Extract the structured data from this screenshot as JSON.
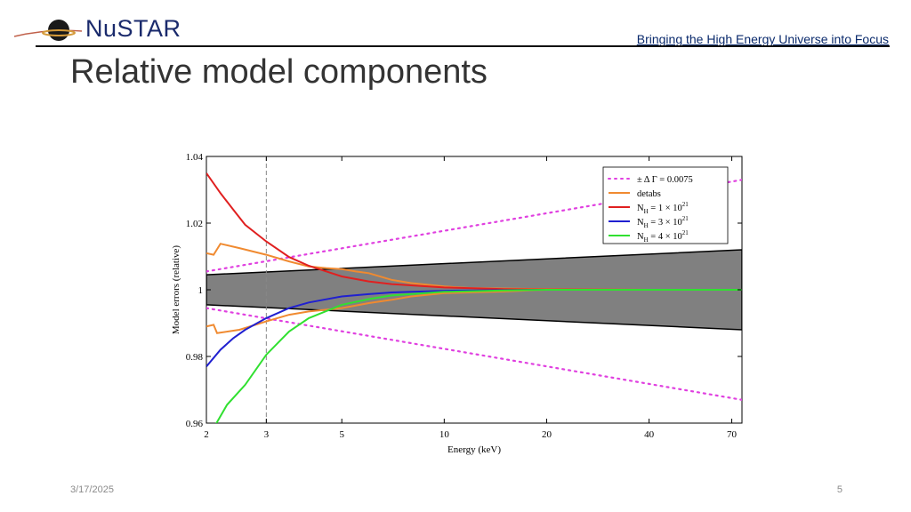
{
  "header": {
    "logo_text": "NuSTAR",
    "tagline": "Bringing the High Energy Universe into Focus"
  },
  "title": "Relative model components",
  "footer": {
    "date": "3/17/2025",
    "page": "5"
  },
  "chart_data": {
    "type": "line",
    "xscale": "log",
    "xlabel": "Energy (keV)",
    "ylabel": "Model errors (relative)",
    "xlim": [
      2,
      75
    ],
    "ylim": [
      0.96,
      1.04
    ],
    "xticks": [
      2,
      3,
      5,
      10,
      20,
      40,
      70
    ],
    "yticks": [
      0.96,
      0.98,
      1,
      1.02,
      1.04
    ],
    "ytick_labels": [
      "0.96",
      "0.98",
      "1",
      "1.02",
      "1.04"
    ],
    "vline_x": 3,
    "grid": false,
    "legend_position": "top-right",
    "band": {
      "upper": [
        [
          2,
          1.0045
        ],
        [
          75,
          1.012
        ]
      ],
      "lower": [
        [
          2,
          0.9955
        ],
        [
          75,
          0.988
        ]
      ],
      "fill": "#808080"
    },
    "series": [
      {
        "name": "± Δ Γ = 0.0075",
        "color": "#e040e0",
        "style": "dotted",
        "values": [
          [
            2,
            1.0055
          ],
          [
            75,
            1.033
          ]
        ]
      },
      {
        "name": "± Δ Γ = 0.0075",
        "color": "#e040e0",
        "style": "dotted",
        "legend": false,
        "values": [
          [
            2,
            0.9945
          ],
          [
            75,
            0.967
          ]
        ]
      },
      {
        "name": "detabs",
        "color": "#f08a30",
        "style": "solid",
        "values": [
          [
            2,
            1.011
          ],
          [
            2.1,
            1.0105
          ],
          [
            2.2,
            1.0138
          ],
          [
            2.5,
            1.0125
          ],
          [
            3,
            1.0105
          ],
          [
            3.5,
            1.0085
          ],
          [
            4,
            1.007
          ],
          [
            4.5,
            1.0065
          ],
          [
            5,
            1.0062
          ],
          [
            5.5,
            1.0055
          ],
          [
            6,
            1.005
          ],
          [
            7,
            1.003
          ],
          [
            8,
            1.002
          ],
          [
            10,
            1.001
          ],
          [
            12,
            1.0005
          ],
          [
            20,
            1.0002
          ],
          [
            40,
            1.0
          ],
          [
            75,
            1.0
          ]
        ]
      },
      {
        "name": "detabs",
        "color": "#f08a30",
        "style": "solid",
        "legend": false,
        "values": [
          [
            2,
            0.989
          ],
          [
            2.1,
            0.9895
          ],
          [
            2.15,
            0.987
          ],
          [
            2.5,
            0.988
          ],
          [
            3,
            0.9905
          ],
          [
            3.5,
            0.9925
          ],
          [
            4,
            0.9935
          ],
          [
            5,
            0.9945
          ],
          [
            6,
            0.996
          ],
          [
            7,
            0.997
          ],
          [
            8,
            0.998
          ],
          [
            10,
            0.999
          ],
          [
            15,
            0.9995
          ],
          [
            20,
            1.0
          ],
          [
            75,
            1.0
          ]
        ]
      },
      {
        "name": "N_H = 1 × 10^21",
        "color": "#e02020",
        "style": "solid",
        "values": [
          [
            2,
            1.035
          ],
          [
            2.2,
            1.029
          ],
          [
            2.4,
            1.024
          ],
          [
            2.6,
            1.0195
          ],
          [
            3,
            1.0145
          ],
          [
            3.5,
            1.0098
          ],
          [
            4,
            1.0072
          ],
          [
            5,
            1.004
          ],
          [
            6,
            1.0025
          ],
          [
            7,
            1.0017
          ],
          [
            10,
            1.0007
          ],
          [
            15,
            1.0002
          ],
          [
            20,
            1.0001
          ],
          [
            40,
            1.0
          ],
          [
            75,
            1.0
          ]
        ]
      },
      {
        "name": "N_H = 3 × 10^21",
        "color": "#2020d0",
        "style": "solid",
        "values": [
          [
            2,
            0.977
          ],
          [
            2.2,
            0.982
          ],
          [
            2.4,
            0.9855
          ],
          [
            2.6,
            0.988
          ],
          [
            3,
            0.9915
          ],
          [
            3.5,
            0.9945
          ],
          [
            4,
            0.9962
          ],
          [
            5,
            0.998
          ],
          [
            6,
            0.9987
          ],
          [
            7,
            0.9992
          ],
          [
            10,
            0.9997
          ],
          [
            15,
            0.9999
          ],
          [
            20,
            1.0
          ],
          [
            75,
            1.0
          ]
        ]
      },
      {
        "name": "N_H = 4 × 10^21",
        "color": "#30e030",
        "style": "solid",
        "values": [
          [
            2.1,
            0.9585
          ],
          [
            2.3,
            0.9655
          ],
          [
            2.6,
            0.9715
          ],
          [
            3,
            0.9805
          ],
          [
            3.5,
            0.9875
          ],
          [
            4,
            0.9915
          ],
          [
            5,
            0.9955
          ],
          [
            6,
            0.9972
          ],
          [
            7,
            0.9983
          ],
          [
            10,
            0.9994
          ],
          [
            15,
            0.9998
          ],
          [
            20,
            1.0
          ],
          [
            75,
            1.0
          ]
        ]
      }
    ],
    "legend": [
      {
        "label": "± Δ Γ = 0.0075",
        "color": "#e040e0",
        "style": "dotted"
      },
      {
        "label": "detabs",
        "color": "#f08a30",
        "style": "solid"
      },
      {
        "label": "N",
        "sub": "H",
        "mid": " = 1 × 10",
        "sup": "21",
        "color": "#e02020",
        "style": "solid"
      },
      {
        "label": "N",
        "sub": "H",
        "mid": " = 3 × 10",
        "sup": "21",
        "color": "#2020d0",
        "style": "solid"
      },
      {
        "label": "N",
        "sub": "H",
        "mid": " = 4 × 10",
        "sup": "21",
        "color": "#30e030",
        "style": "solid"
      }
    ]
  }
}
